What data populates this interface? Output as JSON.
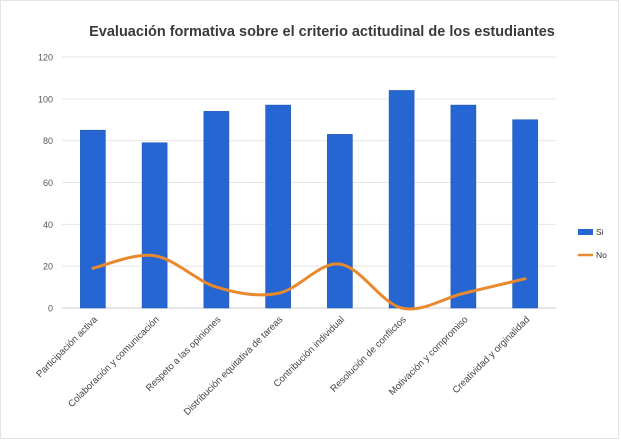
{
  "chart_data": {
    "type": "bar",
    "title": "Evaluación formativa sobre el criterio actitudinal de los estudiantes",
    "xlabel": "",
    "ylabel": "",
    "ylim": [
      0,
      120
    ],
    "yticks": [
      0,
      20,
      40,
      60,
      80,
      100,
      120
    ],
    "grid": true,
    "legend_position": "right",
    "categories": [
      "Participación activa",
      "Colaboración y comunicación",
      "Respeto a las opiniones",
      "Distribución equitativa de tareas",
      "Contribución individual",
      "Resolución de conflictos",
      "Motivación y compromiso",
      "Creatividad y orginalidad"
    ],
    "series": [
      {
        "name": "Si",
        "type": "bar",
        "color": "#2566d3",
        "values": [
          85,
          79,
          94,
          97,
          83,
          104,
          97,
          90
        ]
      },
      {
        "name": "No",
        "type": "line",
        "color": "#e8892e",
        "values": [
          19,
          25,
          10,
          7,
          21,
          0,
          7,
          14
        ]
      }
    ]
  }
}
